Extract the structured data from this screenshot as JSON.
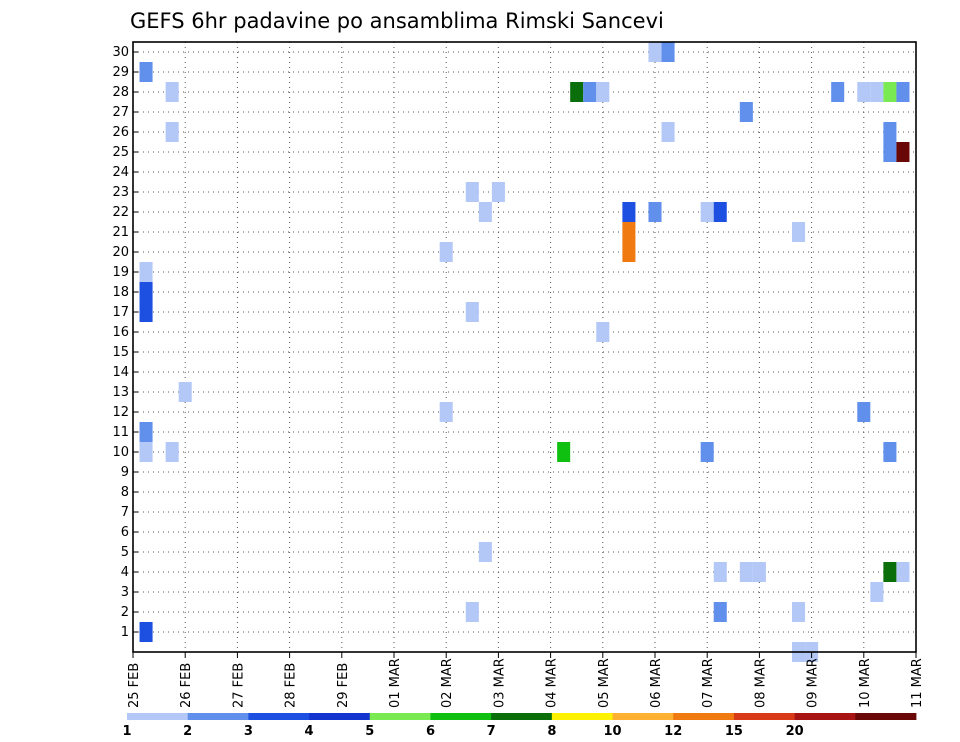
{
  "chart_data": {
    "type": "heatmap",
    "title": "GEFS 6hr padavine po ansamblima Rimski Sancevi",
    "y_ticks": [
      "1",
      "2",
      "3",
      "4",
      "5",
      "6",
      "7",
      "8",
      "9",
      "10",
      "11",
      "12",
      "13",
      "14",
      "15",
      "16",
      "17",
      "18",
      "19",
      "20",
      "21",
      "22",
      "23",
      "24",
      "25",
      "26",
      "27",
      "28",
      "29",
      "30"
    ],
    "x_ticks": [
      "25 FEB",
      "26 FEB",
      "27 FEB",
      "28 FEB",
      "29 FEB",
      "01 MAR",
      "02 MAR",
      "03 MAR",
      "04 MAR",
      "05 MAR",
      "06 MAR",
      "07 MAR",
      "08 MAR",
      "09 MAR",
      "10 MAR",
      "11 MAR"
    ],
    "x_range_days": [
      0,
      15
    ],
    "y_range": [
      0,
      30
    ],
    "grid": true,
    "colorbar": {
      "levels": [
        "1",
        "2",
        "3",
        "4",
        "5",
        "6",
        "7",
        "8",
        "10",
        "12",
        "15",
        "20"
      ],
      "colors": [
        "#b3c8f6",
        "#6090ec",
        "#1d4fe0",
        "#1434d0",
        "#7aea52",
        "#10c010",
        "#0a6e0a",
        "#fff200",
        "#ffb030",
        "#f07a10",
        "#d83a18",
        "#a81414",
        "#6a0808"
      ]
    },
    "cells": [
      {
        "day": 0.25,
        "member": 29,
        "color": "#6090ec"
      },
      {
        "day": 0.25,
        "member": 19,
        "color": "#b3c8f6"
      },
      {
        "day": 0.25,
        "member": 18,
        "color": "#1d4fe0"
      },
      {
        "day": 0.25,
        "member": 17,
        "color": "#1d4fe0"
      },
      {
        "day": 0.25,
        "member": 11,
        "color": "#6090ec"
      },
      {
        "day": 0.25,
        "member": 10,
        "color": "#b3c8f6"
      },
      {
        "day": 0.25,
        "member": 1,
        "color": "#1d4fe0"
      },
      {
        "day": 0.75,
        "member": 28,
        "color": "#b3c8f6"
      },
      {
        "day": 0.75,
        "member": 26,
        "color": "#b3c8f6"
      },
      {
        "day": 0.75,
        "member": 10,
        "color": "#b3c8f6"
      },
      {
        "day": 1.0,
        "member": 13,
        "color": "#b3c8f6"
      },
      {
        "day": 6.0,
        "member": 20,
        "color": "#b3c8f6"
      },
      {
        "day": 6.0,
        "member": 12,
        "color": "#b3c8f6"
      },
      {
        "day": 6.5,
        "member": 23,
        "color": "#b3c8f6"
      },
      {
        "day": 6.5,
        "member": 17,
        "color": "#b3c8f6"
      },
      {
        "day": 6.5,
        "member": 2,
        "color": "#b3c8f6"
      },
      {
        "day": 6.75,
        "member": 22,
        "color": "#b3c8f6"
      },
      {
        "day": 6.75,
        "member": 5,
        "color": "#b3c8f6"
      },
      {
        "day": 7.0,
        "member": 23,
        "color": "#b3c8f6"
      },
      {
        "day": 8.25,
        "member": 10,
        "color": "#10c010"
      },
      {
        "day": 8.5,
        "member": 28,
        "color": "#0a6e0a"
      },
      {
        "day": 8.75,
        "member": 28,
        "color": "#6090ec"
      },
      {
        "day": 9.0,
        "member": 28,
        "color": "#b3c8f6"
      },
      {
        "day": 9.0,
        "member": 16,
        "color": "#b3c8f6"
      },
      {
        "day": 9.5,
        "member": 22,
        "color": "#1d4fe0"
      },
      {
        "day": 9.5,
        "member": 21,
        "color": "#f07a10"
      },
      {
        "day": 9.5,
        "member": 20,
        "color": "#f07a10"
      },
      {
        "day": 10.0,
        "member": 30,
        "color": "#b3c8f6"
      },
      {
        "day": 10.0,
        "member": 22,
        "color": "#6090ec"
      },
      {
        "day": 10.25,
        "member": 30,
        "color": "#6090ec"
      },
      {
        "day": 10.25,
        "member": 26,
        "color": "#b3c8f6"
      },
      {
        "day": 11.0,
        "member": 22,
        "color": "#b3c8f6"
      },
      {
        "day": 11.0,
        "member": 10,
        "color": "#6090ec"
      },
      {
        "day": 11.25,
        "member": 22,
        "color": "#1d4fe0"
      },
      {
        "day": 11.25,
        "member": 4,
        "color": "#b3c8f6"
      },
      {
        "day": 11.25,
        "member": 2,
        "color": "#6090ec"
      },
      {
        "day": 11.75,
        "member": 27,
        "color": "#6090ec"
      },
      {
        "day": 11.75,
        "member": 4,
        "color": "#b3c8f6"
      },
      {
        "day": 12.0,
        "member": 4,
        "color": "#b3c8f6"
      },
      {
        "day": 12.75,
        "member": 21,
        "color": "#b3c8f6"
      },
      {
        "day": 12.75,
        "member": 2,
        "color": "#b3c8f6"
      },
      {
        "day": 12.75,
        "member": 0,
        "color": "#b3c8f6"
      },
      {
        "day": 13.0,
        "member": 0,
        "color": "#b3c8f6"
      },
      {
        "day": 13.5,
        "member": 28,
        "color": "#6090ec"
      },
      {
        "day": 14.0,
        "member": 12,
        "color": "#6090ec"
      },
      {
        "day": 14.0,
        "member": 28,
        "color": "#b3c8f6"
      },
      {
        "day": 14.25,
        "member": 28,
        "color": "#b3c8f6"
      },
      {
        "day": 14.25,
        "member": 3,
        "color": "#b3c8f6"
      },
      {
        "day": 14.5,
        "member": 28,
        "color": "#7aea52"
      },
      {
        "day": 14.5,
        "member": 26,
        "color": "#6090ec"
      },
      {
        "day": 14.5,
        "member": 25,
        "color": "#6090ec"
      },
      {
        "day": 14.5,
        "member": 10,
        "color": "#6090ec"
      },
      {
        "day": 14.5,
        "member": 4,
        "color": "#0a6e0a"
      },
      {
        "day": 14.75,
        "member": 28,
        "color": "#6090ec"
      },
      {
        "day": 14.75,
        "member": 25,
        "color": "#6a0808"
      },
      {
        "day": 14.75,
        "member": 4,
        "color": "#b3c8f6"
      }
    ]
  }
}
